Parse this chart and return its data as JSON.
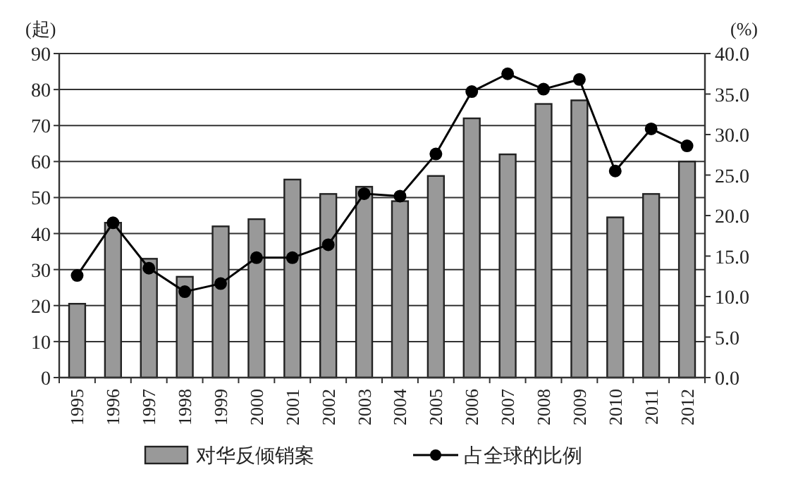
{
  "chart_data": {
    "type": "bar",
    "ylabel": "(起)",
    "y2label": "(%)",
    "categories": [
      "1995",
      "1996",
      "1997",
      "1998",
      "1999",
      "2000",
      "2001",
      "2002",
      "2003",
      "2004",
      "2005",
      "2006",
      "2007",
      "2008",
      "2009",
      "2010",
      "2011",
      "2012"
    ],
    "series": [
      {
        "name": "对华反倾销案",
        "color": "#999999",
        "values": [
          20.5,
          43,
          33,
          28,
          42,
          44,
          55,
          51,
          53,
          49,
          56,
          72,
          62,
          76,
          77,
          44.5,
          51,
          60
        ]
      },
      {
        "name": "占全球的比例",
        "type": "line",
        "axis": "y2",
        "color": "#000000",
        "marker": "circle",
        "values": [
          12.6,
          19.1,
          13.5,
          10.6,
          11.6,
          14.8,
          14.8,
          16.4,
          22.7,
          22.4,
          27.6,
          35.3,
          37.5,
          35.6,
          36.8,
          25.5,
          30.7,
          28.6
        ]
      }
    ],
    "ylim": [
      0,
      90
    ],
    "yticks": [
      0,
      10,
      20,
      30,
      40,
      50,
      60,
      70,
      80,
      90
    ],
    "y2lim": [
      0,
      40
    ],
    "y2ticks": [
      {
        "value": 0,
        "label": "0.0"
      },
      {
        "value": 5,
        "label": "5.0"
      },
      {
        "value": 10,
        "label": "10.0"
      },
      {
        "value": 15,
        "label": "15.0"
      },
      {
        "value": 20,
        "label": "20.0"
      },
      {
        "value": 25,
        "label": "25.0"
      },
      {
        "value": 30,
        "label": "30.0"
      },
      {
        "value": 35,
        "label": "35.0"
      },
      {
        "value": 40,
        "label": "40.0"
      }
    ],
    "grid": "y",
    "legend": "bottom"
  }
}
